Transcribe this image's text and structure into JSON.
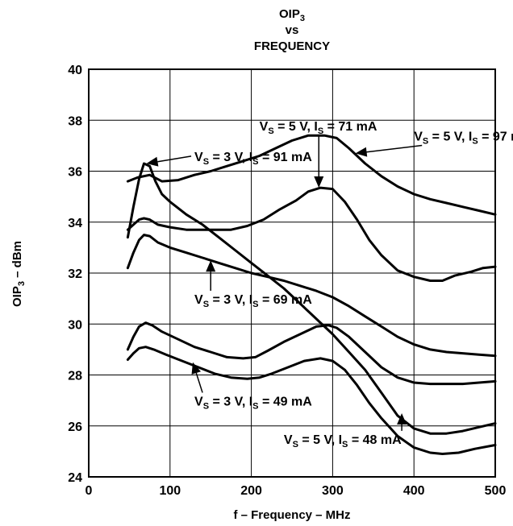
{
  "chart_data": {
    "type": "line",
    "title": {
      "line1": "OIP",
      "line1_sub": "3",
      "line2": "vs",
      "line3": "FREQUENCY"
    },
    "xlabel": "f – Frequency – MHz",
    "ylabel": {
      "main": "OIP",
      "sub": "3",
      "suffix": " – dBm"
    },
    "xlim": [
      0,
      500
    ],
    "ylim": [
      24,
      40
    ],
    "xticks": [
      0,
      100,
      200,
      300,
      400,
      500
    ],
    "yticks": [
      24,
      26,
      28,
      30,
      32,
      34,
      36,
      38,
      40
    ],
    "grid": true,
    "series": [
      {
        "id": "s1",
        "label": {
          "v": "3",
          "i": "91"
        },
        "points": [
          [
            48,
            33.4
          ],
          [
            55,
            34.6
          ],
          [
            62,
            35.7
          ],
          [
            68,
            36.3
          ],
          [
            75,
            36.2
          ],
          [
            82,
            35.6
          ],
          [
            90,
            35.1
          ],
          [
            100,
            34.8
          ],
          [
            120,
            34.3
          ],
          [
            140,
            33.9
          ],
          [
            160,
            33.4
          ],
          [
            180,
            32.9
          ],
          [
            200,
            32.4
          ],
          [
            220,
            31.9
          ],
          [
            240,
            31.4
          ],
          [
            260,
            30.8
          ],
          [
            280,
            30.2
          ],
          [
            300,
            29.6
          ],
          [
            320,
            28.9
          ],
          [
            340,
            28.2
          ],
          [
            360,
            27.3
          ],
          [
            380,
            26.4
          ],
          [
            400,
            25.9
          ],
          [
            420,
            25.7
          ],
          [
            440,
            25.7
          ],
          [
            460,
            25.8
          ],
          [
            480,
            25.95
          ],
          [
            500,
            26.1
          ]
        ]
      },
      {
        "id": "s2",
        "label": {
          "v": "5",
          "i": "97"
        },
        "points": [
          [
            48,
            35.6
          ],
          [
            60,
            35.75
          ],
          [
            75,
            35.85
          ],
          [
            90,
            35.6
          ],
          [
            110,
            35.65
          ],
          [
            130,
            35.85
          ],
          [
            150,
            36.0
          ],
          [
            170,
            36.2
          ],
          [
            190,
            36.4
          ],
          [
            210,
            36.6
          ],
          [
            230,
            36.9
          ],
          [
            250,
            37.2
          ],
          [
            270,
            37.4
          ],
          [
            290,
            37.4
          ],
          [
            305,
            37.3
          ],
          [
            320,
            36.9
          ],
          [
            340,
            36.3
          ],
          [
            360,
            35.8
          ],
          [
            380,
            35.4
          ],
          [
            400,
            35.1
          ],
          [
            420,
            34.9
          ],
          [
            440,
            34.75
          ],
          [
            460,
            34.6
          ],
          [
            480,
            34.45
          ],
          [
            500,
            34.3
          ]
        ]
      },
      {
        "id": "s3",
        "label": {
          "v": "5",
          "i": "71"
        },
        "points": [
          [
            48,
            33.7
          ],
          [
            55,
            33.9
          ],
          [
            62,
            34.1
          ],
          [
            68,
            34.15
          ],
          [
            75,
            34.1
          ],
          [
            85,
            33.9
          ],
          [
            100,
            33.8
          ],
          [
            120,
            33.7
          ],
          [
            150,
            33.7
          ],
          [
            175,
            33.7
          ],
          [
            195,
            33.85
          ],
          [
            215,
            34.1
          ],
          [
            235,
            34.5
          ],
          [
            255,
            34.85
          ],
          [
            270,
            35.2
          ],
          [
            285,
            35.35
          ],
          [
            300,
            35.3
          ],
          [
            315,
            34.8
          ],
          [
            330,
            34.1
          ],
          [
            345,
            33.3
          ],
          [
            360,
            32.7
          ],
          [
            380,
            32.1
          ],
          [
            400,
            31.85
          ],
          [
            420,
            31.7
          ],
          [
            435,
            31.7
          ],
          [
            450,
            31.9
          ],
          [
            470,
            32.05
          ],
          [
            485,
            32.2
          ],
          [
            500,
            32.25
          ]
        ]
      },
      {
        "id": "s4",
        "label": {
          "v": "3",
          "i": "69"
        },
        "points": [
          [
            48,
            32.2
          ],
          [
            55,
            32.8
          ],
          [
            62,
            33.3
          ],
          [
            68,
            33.5
          ],
          [
            75,
            33.45
          ],
          [
            85,
            33.2
          ],
          [
            100,
            33.0
          ],
          [
            120,
            32.8
          ],
          [
            140,
            32.6
          ],
          [
            160,
            32.4
          ],
          [
            180,
            32.2
          ],
          [
            200,
            32.0
          ],
          [
            220,
            31.85
          ],
          [
            240,
            31.7
          ],
          [
            260,
            31.5
          ],
          [
            280,
            31.3
          ],
          [
            300,
            31.05
          ],
          [
            320,
            30.7
          ],
          [
            340,
            30.3
          ],
          [
            360,
            29.9
          ],
          [
            380,
            29.5
          ],
          [
            400,
            29.2
          ],
          [
            420,
            29.0
          ],
          [
            440,
            28.9
          ],
          [
            460,
            28.85
          ],
          [
            480,
            28.8
          ],
          [
            500,
            28.75
          ]
        ]
      },
      {
        "id": "s5",
        "label": {
          "v": "3",
          "i": "49"
        },
        "points": [
          [
            48,
            29.0
          ],
          [
            55,
            29.5
          ],
          [
            62,
            29.9
          ],
          [
            70,
            30.05
          ],
          [
            78,
            29.95
          ],
          [
            90,
            29.7
          ],
          [
            110,
            29.4
          ],
          [
            130,
            29.1
          ],
          [
            150,
            28.9
          ],
          [
            170,
            28.7
          ],
          [
            190,
            28.65
          ],
          [
            205,
            28.7
          ],
          [
            220,
            28.95
          ],
          [
            240,
            29.3
          ],
          [
            260,
            29.6
          ],
          [
            280,
            29.9
          ],
          [
            295,
            29.95
          ],
          [
            305,
            29.85
          ],
          [
            320,
            29.5
          ],
          [
            340,
            28.9
          ],
          [
            360,
            28.3
          ],
          [
            380,
            27.9
          ],
          [
            400,
            27.7
          ],
          [
            420,
            27.65
          ],
          [
            440,
            27.65
          ],
          [
            460,
            27.65
          ],
          [
            480,
            27.7
          ],
          [
            500,
            27.75
          ]
        ]
      },
      {
        "id": "s6",
        "label": {
          "v": "5",
          "i": "48"
        },
        "points": [
          [
            48,
            28.6
          ],
          [
            55,
            28.85
          ],
          [
            62,
            29.05
          ],
          [
            70,
            29.1
          ],
          [
            80,
            29.0
          ],
          [
            95,
            28.8
          ],
          [
            115,
            28.55
          ],
          [
            135,
            28.3
          ],
          [
            155,
            28.05
          ],
          [
            175,
            27.9
          ],
          [
            195,
            27.85
          ],
          [
            210,
            27.9
          ],
          [
            225,
            28.05
          ],
          [
            245,
            28.3
          ],
          [
            265,
            28.55
          ],
          [
            285,
            28.65
          ],
          [
            300,
            28.55
          ],
          [
            315,
            28.2
          ],
          [
            330,
            27.6
          ],
          [
            345,
            26.9
          ],
          [
            360,
            26.3
          ],
          [
            380,
            25.6
          ],
          [
            400,
            25.15
          ],
          [
            420,
            24.95
          ],
          [
            435,
            24.9
          ],
          [
            455,
            24.95
          ],
          [
            475,
            25.1
          ],
          [
            500,
            25.25
          ]
        ]
      }
    ],
    "annotations": [
      {
        "series": "s3",
        "at": [
          283,
          35.35
        ],
        "pos": [
          210,
          37.6
        ]
      },
      {
        "series": "s2",
        "at": [
          328,
          36.7
        ],
        "pos": [
          400,
          37.2
        ]
      },
      {
        "series": "s1",
        "at": [
          71,
          36.3
        ],
        "pos": [
          130,
          36.4
        ]
      },
      {
        "series": "s4",
        "at": [
          150,
          32.5
        ],
        "pos": [
          130,
          30.8
        ]
      },
      {
        "series": "s5",
        "at": [
          128,
          28.5
        ],
        "pos": [
          130,
          26.8
        ]
      },
      {
        "series": "s6",
        "at": [
          385,
          26.5
        ],
        "pos": [
          240,
          25.3
        ]
      }
    ],
    "colors": {
      "line": "#000000",
      "grid": "#000000",
      "background": "#ffffff"
    }
  }
}
